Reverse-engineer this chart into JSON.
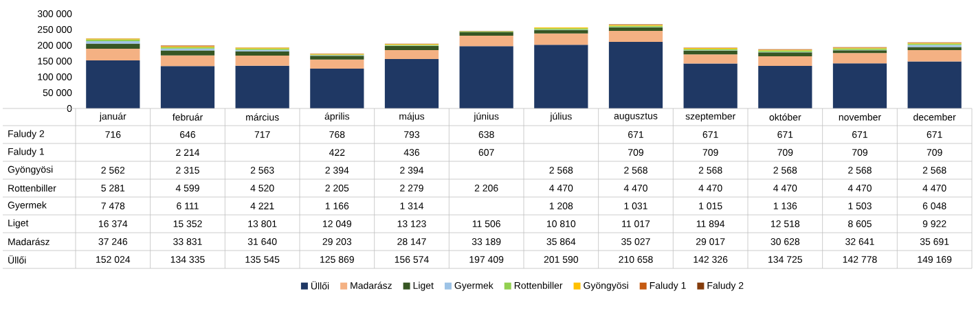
{
  "chart_data": {
    "type": "bar",
    "stacked": true,
    "legend": "bottom",
    "categories": [
      "január",
      "február",
      "március",
      "április",
      "május",
      "június",
      "július",
      "augusztus",
      "szeptember",
      "október",
      "november",
      "december"
    ],
    "ylim": [
      0,
      300000
    ],
    "yticks": [
      0,
      {
        "value": 50000,
        "label": "50 000"
      },
      {
        "value": 100000,
        "label": "100 000"
      },
      {
        "value": 150000,
        "label": "150 000"
      },
      {
        "value": 200000,
        "label": "200 000"
      },
      {
        "value": 250000,
        "label": "250 000"
      },
      {
        "value": 300000,
        "label": "300 000"
      }
    ],
    "series": [
      {
        "name": "Üllői",
        "color": "#1f3864",
        "values": [
          152024,
          134335,
          135545,
          125869,
          156574,
          197409,
          201590,
          210658,
          142326,
          134725,
          142778,
          149169
        ],
        "value_labels": [
          "152 024",
          "134 335",
          "135 545",
          "125 869",
          "156 574",
          "197 409",
          "201 590",
          "210 658",
          "142 326",
          "134 725",
          "142 778",
          "149 169"
        ]
      },
      {
        "name": "Madarász",
        "color": "#f4b183",
        "values": [
          37246,
          33831,
          31640,
          29203,
          28147,
          33189,
          35864,
          35027,
          29017,
          30628,
          32641,
          35691
        ],
        "value_labels": [
          "37 246",
          "33 831",
          "31 640",
          "29 203",
          "28 147",
          "33 189",
          "35 864",
          "35 027",
          "29 017",
          "30 628",
          "32 641",
          "35 691"
        ]
      },
      {
        "name": "Liget",
        "color": "#375623",
        "values": [
          16374,
          15352,
          13801,
          12049,
          13123,
          11506,
          10810,
          11017,
          11894,
          12518,
          8605,
          9922
        ],
        "value_labels": [
          "16 374",
          "15 352",
          "13 801",
          "12 049",
          "13 123",
          "11 506",
          "10 810",
          "11 017",
          "11 894",
          "12 518",
          "8 605",
          "9 922"
        ]
      },
      {
        "name": "Gyermek",
        "color": "#9dc3e6",
        "values": [
          7478,
          6111,
          4221,
          1166,
          1314,
          null,
          1208,
          1031,
          1015,
          1136,
          1503,
          6048
        ],
        "value_labels": [
          "7 478",
          "6 111",
          "4 221",
          "1 166",
          "1 314",
          null,
          "1 208",
          "1 031",
          "1 015",
          "1 136",
          "1 503",
          "6 048"
        ]
      },
      {
        "name": "Rottenbiller",
        "color": "#92d050",
        "values": [
          5281,
          4599,
          4520,
          2205,
          2279,
          2206,
          4470,
          4470,
          4470,
          4470,
          4470,
          4470
        ],
        "value_labels": [
          "5 281",
          "4 599",
          "4 520",
          "2 205",
          "2 279",
          "2 206",
          "4 470",
          "4 470",
          "4 470",
          "4 470",
          "4 470",
          "4 470"
        ]
      },
      {
        "name": "Gyöngyösi",
        "color": "#ffc000",
        "values": [
          2562,
          2315,
          2563,
          2394,
          2394,
          null,
          2568,
          2568,
          2568,
          2568,
          2568,
          2568
        ],
        "value_labels": [
          "2 562",
          "2 315",
          "2 563",
          "2 394",
          "2 394",
          null,
          "2 568",
          "2 568",
          "2 568",
          "2 568",
          "2 568",
          "2 568"
        ]
      },
      {
        "name": "Faludy 1",
        "color": "#c55a11",
        "values": [
          null,
          2214,
          null,
          422,
          436,
          607,
          null,
          709,
          709,
          709,
          709,
          709
        ],
        "value_labels": [
          null,
          "2 214",
          null,
          "422",
          "436",
          "607",
          null,
          "709",
          "709",
          "709",
          "709",
          "709"
        ]
      },
      {
        "name": "Faludy 2",
        "color": "#843c0c",
        "values": [
          716,
          646,
          717,
          768,
          793,
          638,
          null,
          671,
          671,
          671,
          671,
          671
        ],
        "value_labels": [
          "716",
          "646",
          "717",
          "768",
          "793",
          "638",
          null,
          "671",
          "671",
          "671",
          "671",
          "671"
        ]
      }
    ]
  }
}
